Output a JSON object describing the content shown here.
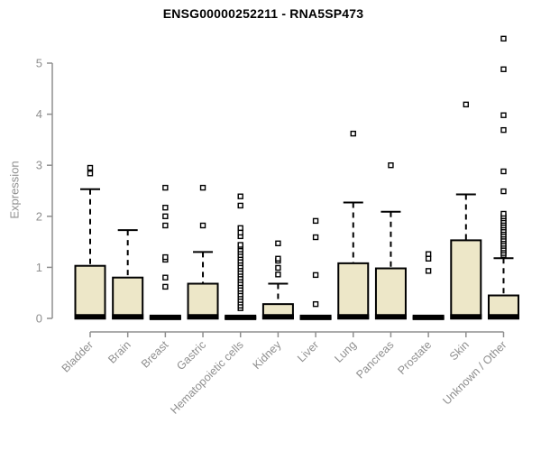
{
  "chart_data": {
    "type": "boxplot",
    "title": "ENSG00000252211 - RNA5SP473",
    "ylabel": "Expression",
    "xlabel": "",
    "ylim": [
      0,
      5
    ],
    "yticks": [
      0,
      1,
      2,
      3,
      4,
      5
    ],
    "grid": false,
    "legend": false,
    "colors": {
      "box_fill": "#EDE7C8",
      "box_stroke": "#000000",
      "whisker": "#000000",
      "outlier_fill": "#FFFFFF",
      "axis": "#8F8F8F",
      "label": "#8F8F8F",
      "title": "#000000",
      "background": "#FFFFFF"
    },
    "categories": [
      "Bladder",
      "Brain",
      "Breast",
      "Gastric",
      "Hematopoietic cells",
      "Kidney",
      "Liver",
      "Lung",
      "Pancreas",
      "Prostate",
      "Skin",
      "Unknown / Other"
    ],
    "series": [
      {
        "name": "Bladder",
        "q1": 0,
        "median": 0.03,
        "q3": 1.03,
        "whisker_low": 0,
        "whisker_high": 2.53,
        "outliers": [
          2.84,
          2.95
        ]
      },
      {
        "name": "Brain",
        "q1": 0,
        "median": 0.03,
        "q3": 0.8,
        "whisker_low": 0,
        "whisker_high": 1.73,
        "outliers": []
      },
      {
        "name": "Breast",
        "q1": 0,
        "median": 0.02,
        "q3": 0.03,
        "whisker_low": 0,
        "whisker_high": 0.03,
        "outliers": [
          0.62,
          0.8,
          1.15,
          1.2,
          1.82,
          2.0,
          2.17,
          2.56
        ]
      },
      {
        "name": "Gastric",
        "q1": 0,
        "median": 0.03,
        "q3": 0.68,
        "whisker_low": 0,
        "whisker_high": 1.3,
        "outliers": [
          1.82,
          2.56
        ]
      },
      {
        "name": "Hematopoietic cells",
        "q1": 0,
        "median": 0.02,
        "q3": 0.03,
        "whisker_low": 0,
        "whisker_high": 0.03,
        "outliers": [
          0.2,
          0.25,
          0.31,
          0.36,
          0.42,
          0.47,
          0.53,
          0.58,
          0.64,
          0.69,
          0.75,
          0.8,
          0.86,
          0.91,
          0.97,
          1.02,
          1.08,
          1.13,
          1.19,
          1.24,
          1.3,
          1.35,
          1.41,
          1.44,
          1.61,
          1.68,
          1.77,
          2.21,
          2.39
        ]
      },
      {
        "name": "Kidney",
        "q1": 0,
        "median": 0.03,
        "q3": 0.28,
        "whisker_low": 0,
        "whisker_high": 0.68,
        "outliers": [
          0.86,
          0.99,
          1.13,
          1.17,
          1.47
        ]
      },
      {
        "name": "Liver",
        "q1": 0,
        "median": 0.02,
        "q3": 0.03,
        "whisker_low": 0,
        "whisker_high": 0.03,
        "outliers": [
          0.28,
          0.85,
          1.59,
          1.91
        ]
      },
      {
        "name": "Lung",
        "q1": 0,
        "median": 0.03,
        "q3": 1.08,
        "whisker_low": 0,
        "whisker_high": 2.27,
        "outliers": [
          3.62
        ]
      },
      {
        "name": "Pancreas",
        "q1": 0,
        "median": 0.03,
        "q3": 0.98,
        "whisker_low": 0,
        "whisker_high": 2.09,
        "outliers": [
          3.0
        ]
      },
      {
        "name": "Prostate",
        "q1": 0,
        "median": 0.02,
        "q3": 0.03,
        "whisker_low": 0,
        "whisker_high": 0.03,
        "outliers": [
          0.93,
          1.17,
          1.26
        ]
      },
      {
        "name": "Skin",
        "q1": 0,
        "median": 0.03,
        "q3": 1.53,
        "whisker_low": 0,
        "whisker_high": 2.43,
        "outliers": [
          4.19
        ]
      },
      {
        "name": "Unknown / Other",
        "q1": 0,
        "median": 0.03,
        "q3": 0.45,
        "whisker_low": 0,
        "whisker_high": 1.18,
        "outliers": [
          1.24,
          1.28,
          1.33,
          1.37,
          1.42,
          1.46,
          1.51,
          1.55,
          1.6,
          1.64,
          1.69,
          1.73,
          1.78,
          1.82,
          1.87,
          1.91,
          1.96,
          2.0,
          2.05,
          2.49,
          2.88,
          3.69,
          3.98,
          4.88,
          5.48
        ]
      }
    ]
  }
}
